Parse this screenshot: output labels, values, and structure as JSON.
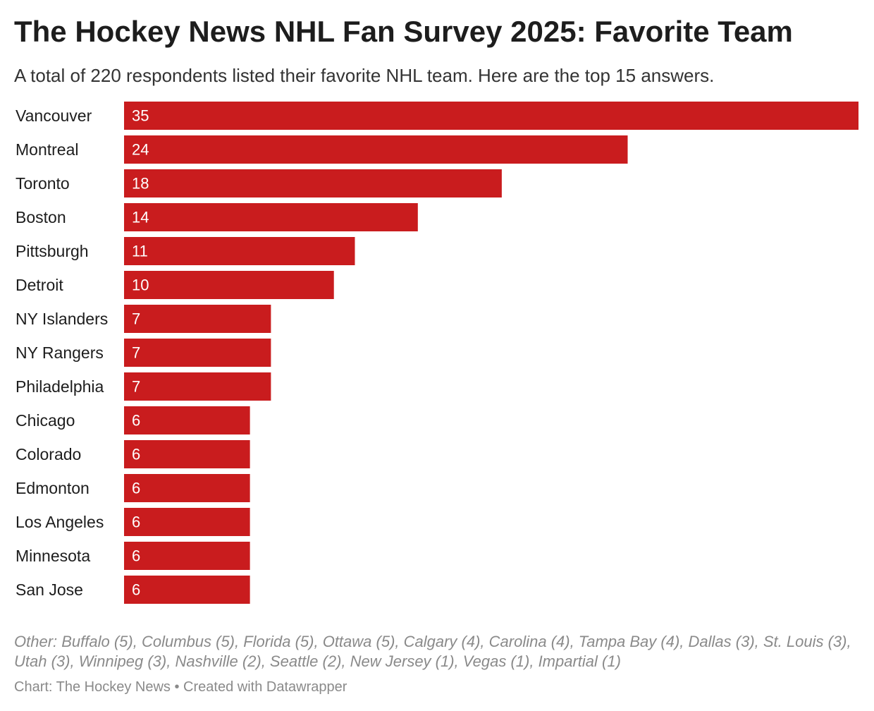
{
  "title": "The Hockey News NHL Fan Survey 2025: Favorite Team",
  "subtitle": "A total of 220 respondents listed their favorite NHL team. Here are the top 15 answers.",
  "note": "Other: Buffalo (5), Columbus (5), Florida (5), Ottawa (5), Calgary (4), Carolina (4), Tampa Bay (4), Dallas (3), St. Louis (3), Utah (3), Winnipeg (3), Nashville (2), Seattle (2), New Jersey (1), Vegas (1), Impartial (1)",
  "credit": "Chart: The Hockey News • Created with Datawrapper",
  "chart_data": {
    "type": "bar",
    "orientation": "horizontal",
    "categories": [
      "Vancouver",
      "Montreal",
      "Toronto",
      "Boston",
      "Pittsburgh",
      "Detroit",
      "NY Islanders",
      "NY Rangers",
      "Philadelphia",
      "Chicago",
      "Colorado",
      "Edmonton",
      "Los Angeles",
      "Minnesota",
      "San Jose"
    ],
    "values": [
      35,
      24,
      18,
      14,
      11,
      10,
      7,
      7,
      7,
      6,
      6,
      6,
      6,
      6,
      6
    ],
    "xlim": [
      0,
      35
    ],
    "grid": false,
    "bar_color": "#c91c1e",
    "value_label_color": "#ffffff"
  }
}
